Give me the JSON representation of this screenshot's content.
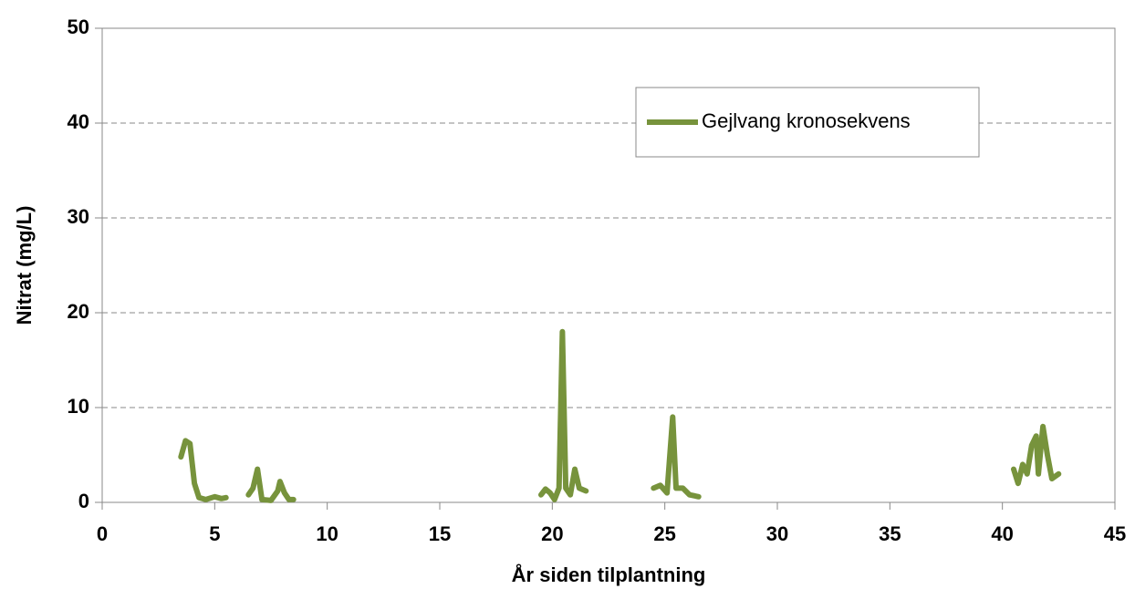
{
  "chart_data": {
    "type": "line",
    "x_label": "År siden tilplantning",
    "y_label": "Nitrat (mg/L)",
    "x": [
      3.5,
      3.7,
      3.9,
      4.1,
      4.3,
      4.6,
      5.0,
      5.3,
      5.5,
      null,
      6.5,
      6.7,
      6.9,
      7.1,
      7.5,
      7.8,
      7.9,
      8.1,
      8.3,
      8.5,
      null,
      19.5,
      19.7,
      19.9,
      20.1,
      20.3,
      20.45,
      20.6,
      20.8,
      21.0,
      21.2,
      21.5,
      null,
      24.5,
      24.8,
      25.1,
      25.35,
      25.5,
      25.8,
      26.1,
      26.5,
      null,
      40.5,
      40.7,
      40.9,
      41.1,
      41.3,
      41.5,
      41.6,
      41.8,
      42.0,
      42.2,
      42.5
    ],
    "series": [
      {
        "name": "Gejlvang kronosekvens",
        "color": "#77933c",
        "values": [
          4.8,
          6.5,
          6.2,
          2.0,
          0.5,
          0.3,
          0.6,
          0.4,
          0.5,
          null,
          0.8,
          1.5,
          3.5,
          0.3,
          0.2,
          1.2,
          2.2,
          1.0,
          0.3,
          0.3,
          null,
          0.8,
          1.4,
          1.0,
          0.3,
          1.5,
          18.0,
          1.5,
          0.8,
          3.5,
          1.5,
          1.2,
          null,
          1.5,
          1.8,
          1.0,
          9.0,
          1.5,
          1.5,
          0.8,
          0.6,
          null,
          3.5,
          2.0,
          4.0,
          3.0,
          6.0,
          7.0,
          3.0,
          8.0,
          5.0,
          2.5,
          3.0
        ]
      }
    ],
    "xlim": [
      0,
      45
    ],
    "xticks": [
      0,
      5,
      10,
      15,
      20,
      25,
      30,
      35,
      40,
      45
    ],
    "ylim": [
      0,
      50
    ],
    "yticks": [
      0,
      10,
      20,
      30,
      40,
      50
    ],
    "grid": true,
    "legend": "upper right"
  }
}
